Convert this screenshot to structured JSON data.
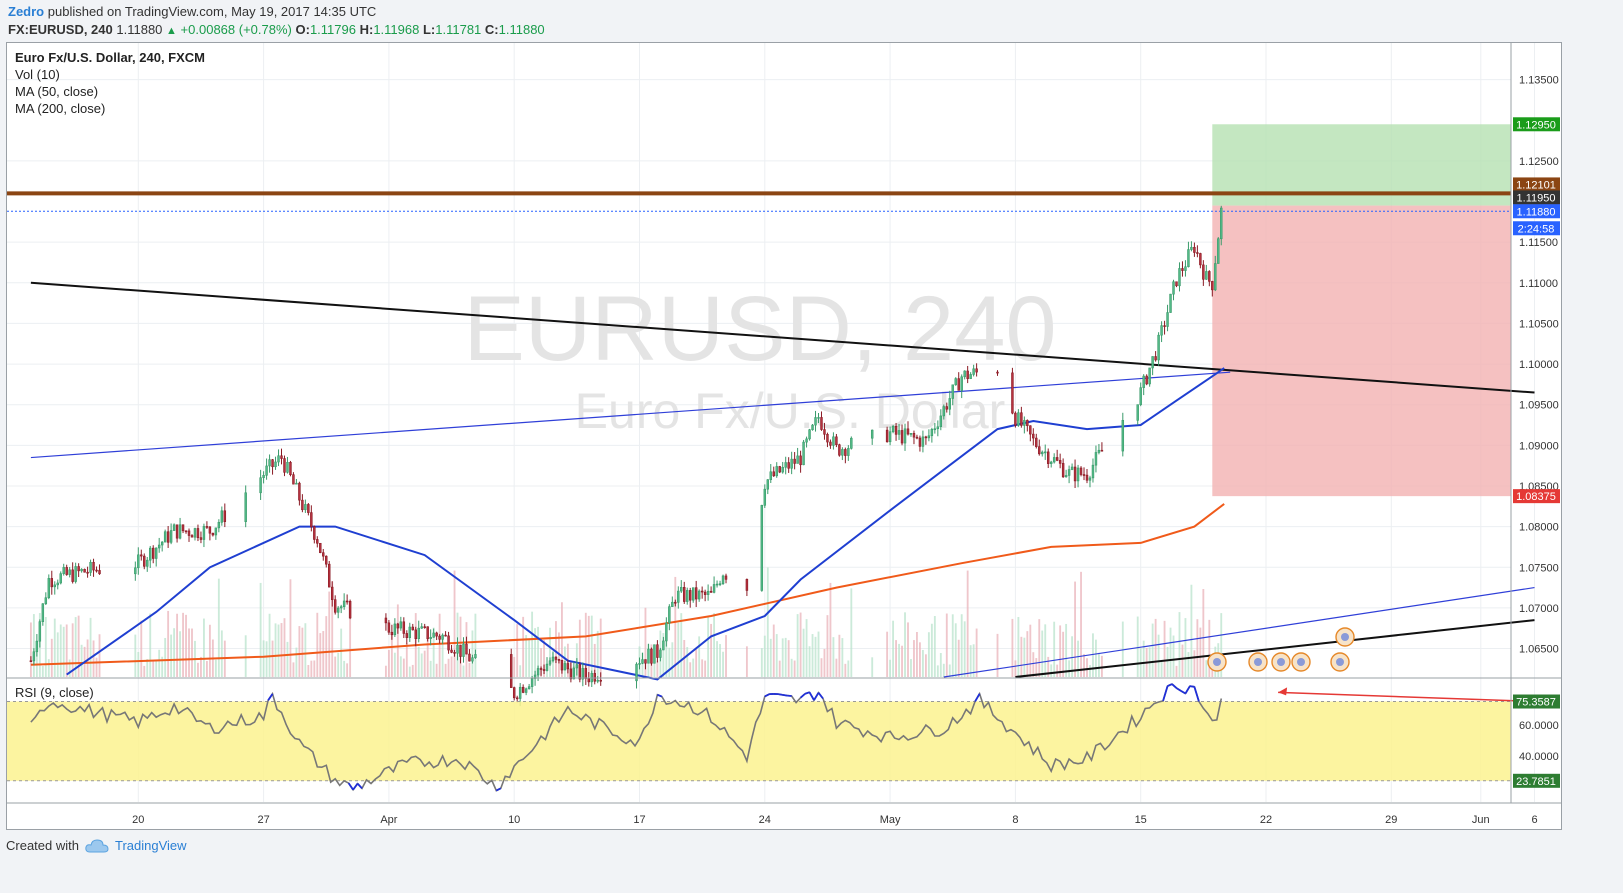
{
  "header": {
    "author": "Zedro",
    "published": "published on TradingView.com, May 19, 2017 14:35 UTC",
    "symbol": "FX:EURUSD, 240",
    "last": "1.11880",
    "change": "+0.00868 (+0.78%)",
    "open_label": "O:",
    "open": "1.11796",
    "high_label": "H:",
    "high": "1.11968",
    "low_label": "L:",
    "low": "1.11781",
    "close_label": "C:",
    "close": "1.11880"
  },
  "legend": {
    "title": "Euro Fx/U.S. Dollar, 240, FXCM",
    "vol": "Vol (10)",
    "ma50": "MA (50, close)",
    "ma200": "MA (200, close)",
    "rsi": "RSI (9, close)"
  },
  "watermark": {
    "symbol": "EURUSD, 240",
    "name": "Euro Fx/U.S. Dollar"
  },
  "footer": {
    "created_with": "Created with",
    "brand": "TradingView"
  },
  "colors": {
    "up": "#53b987",
    "down": "#eb4d5c",
    "ma50": "#1f3fd1",
    "ma200": "#f05a1a",
    "resistance": "#8b4513",
    "target_zone": "#b5e1b1",
    "stop_zone": "#f3b1b1",
    "rsi_band": "#fbf28f",
    "rsi_line": "#777777"
  },
  "chart_data": [
    {
      "type": "candlestick",
      "pane": "price",
      "ylim": [
        1.0615,
        1.1395
      ],
      "y_ticks": [
        "1.13500",
        "1.12500",
        "1.11500",
        "1.11000",
        "1.10500",
        "1.10000",
        "1.09500",
        "1.09000",
        "1.08500",
        "1.08000",
        "1.07500",
        "1.07000",
        "1.06500"
      ],
      "x_ticks": [
        "20",
        "27",
        "Apr",
        "10",
        "17",
        "24",
        "May",
        "8",
        "15",
        "22",
        "29",
        "Jun",
        "6"
      ],
      "price_tags": [
        {
          "label": "1.12950",
          "color": "#1a9c1a"
        },
        {
          "label": "1.12101",
          "color": "#8b4513"
        },
        {
          "label": "1.11950",
          "color": "#333333"
        },
        {
          "label": "1.11880",
          "color": "#2962ff"
        },
        {
          "label": "2:24:58",
          "color": "#2962ff"
        },
        {
          "label": "1.08375",
          "color": "#e53935"
        }
      ],
      "anchors": [
        {
          "x": "2017-03-14",
          "y": 1.0635
        },
        {
          "x": "2017-03-15",
          "y": 1.0735
        },
        {
          "x": "2017-03-17",
          "y": 1.0745
        },
        {
          "x": "2017-03-20",
          "y": 1.0755
        },
        {
          "x": "2017-03-22",
          "y": 1.0795
        },
        {
          "x": "2017-03-24",
          "y": 1.0795
        },
        {
          "x": "2017-03-27",
          "y": 1.0865
        },
        {
          "x": "2017-03-28",
          "y": 1.0885
        },
        {
          "x": "2017-03-30",
          "y": 1.0785
        },
        {
          "x": "2017-03-31",
          "y": 1.0705
        },
        {
          "x": "2017-04-03",
          "y": 1.0675
        },
        {
          "x": "2017-04-06",
          "y": 1.0665
        },
        {
          "x": "2017-04-10",
          "y": 1.0595
        },
        {
          "x": "2017-04-12",
          "y": 1.0635
        },
        {
          "x": "2017-04-14",
          "y": 1.0615
        },
        {
          "x": "2017-04-18",
          "y": 1.0645
        },
        {
          "x": "2017-04-19",
          "y": 1.0715
        },
        {
          "x": "2017-04-21",
          "y": 1.0715
        },
        {
          "x": "2017-04-21 16:00",
          "y": 1.0745
        },
        {
          "x": "2017-04-23",
          "y": 1.0725
        },
        {
          "x": "2017-04-24",
          "y": 1.0855
        },
        {
          "x": "2017-04-26",
          "y": 1.0885
        },
        {
          "x": "2017-04-27",
          "y": 1.0935
        },
        {
          "x": "2017-04-28",
          "y": 1.0895
        },
        {
          "x": "2017-05-01",
          "y": 1.0915
        },
        {
          "x": "2017-05-03",
          "y": 1.0905
        },
        {
          "x": "2017-05-05",
          "y": 1.0985
        },
        {
          "x": "2017-05-07",
          "y": 1.0995
        },
        {
          "x": "2017-05-08",
          "y": 1.0935
        },
        {
          "x": "2017-05-09",
          "y": 1.0905
        },
        {
          "x": "2017-05-11",
          "y": 1.0865
        },
        {
          "x": "2017-05-12",
          "y": 1.0865
        },
        {
          "x": "2017-05-15",
          "y": 1.0965
        },
        {
          "x": "2017-05-16",
          "y": 1.1025
        },
        {
          "x": "2017-05-17",
          "y": 1.1105
        },
        {
          "x": "2017-05-18",
          "y": 1.1145
        },
        {
          "x": "2017-05-18 16:00",
          "y": 1.1105
        },
        {
          "x": "2017-05-19",
          "y": 1.11
        },
        {
          "x": "2017-05-19 12:00",
          "y": 1.1188
        }
      ],
      "lines": [
        {
          "name": "resistance",
          "y": 1.121
        },
        {
          "name": "last price",
          "y": 1.1188
        }
      ],
      "positions": {
        "entry_start": "2017-05-19",
        "end": "2017-06-06",
        "target_top": 1.1295,
        "entry": 1.1195,
        "stop": 1.08375
      },
      "ma50": [
        {
          "x": "2017-03-16",
          "y": 1.0618
        },
        {
          "x": "2017-03-21",
          "y": 1.0695
        },
        {
          "x": "2017-03-24",
          "y": 1.075
        },
        {
          "x": "2017-03-29",
          "y": 1.08
        },
        {
          "x": "2017-03-31",
          "y": 1.08
        },
        {
          "x": "2017-04-05",
          "y": 1.0765
        },
        {
          "x": "2017-04-10",
          "y": 1.0685
        },
        {
          "x": "2017-04-13",
          "y": 1.0635
        },
        {
          "x": "2017-04-18",
          "y": 1.0612
        },
        {
          "x": "2017-04-21",
          "y": 1.0665
        },
        {
          "x": "2017-04-24",
          "y": 1.069
        },
        {
          "x": "2017-04-26",
          "y": 1.0735
        },
        {
          "x": "2017-05-01",
          "y": 1.082
        },
        {
          "x": "2017-05-04",
          "y": 1.087
        },
        {
          "x": "2017-05-07",
          "y": 1.092
        },
        {
          "x": "2017-05-09",
          "y": 1.093
        },
        {
          "x": "2017-05-12",
          "y": 1.092
        },
        {
          "x": "2017-05-15",
          "y": 1.0925
        },
        {
          "x": "2017-05-17",
          "y": 1.0955
        },
        {
          "x": "2017-05-19",
          "y": 1.0985
        },
        {
          "x": "2017-05-19 16:00",
          "y": 1.0995
        }
      ],
      "ma200": [
        {
          "x": "2017-03-14",
          "y": 1.063
        },
        {
          "x": "2017-03-27",
          "y": 1.064
        },
        {
          "x": "2017-04-05",
          "y": 1.0655
        },
        {
          "x": "2017-04-14",
          "y": 1.0665
        },
        {
          "x": "2017-04-21",
          "y": 1.069
        },
        {
          "x": "2017-04-28",
          "y": 1.0725
        },
        {
          "x": "2017-05-05",
          "y": 1.0755
        },
        {
          "x": "2017-05-10",
          "y": 1.0775
        },
        {
          "x": "2017-05-15",
          "y": 1.078
        },
        {
          "x": "2017-05-18",
          "y": 1.08
        },
        {
          "x": "2017-05-19 16:00",
          "y": 1.0828
        }
      ],
      "trendlines": [
        {
          "name": "descending resistance",
          "from": {
            "x": "2017-03-14",
            "y": 1.11
          },
          "to": {
            "x": "2017-06-06",
            "y": 1.0965
          }
        },
        {
          "name": "rising channel top",
          "from": {
            "x": "2017-03-14",
            "y": 1.0885
          },
          "to": {
            "x": "2017-05-20",
            "y": 1.099
          }
        },
        {
          "name": "rising channel bottom",
          "from": {
            "x": "2017-05-04",
            "y": 1.0615
          },
          "to": {
            "x": "2017-06-06",
            "y": 1.0725
          }
        },
        {
          "name": "support line",
          "from": {
            "x": "2017-05-08",
            "y": 1.0615
          },
          "to": {
            "x": "2017-06-06",
            "y": 1.0685
          }
        }
      ]
    },
    {
      "type": "line",
      "pane": "rsi",
      "name": "RSI (9, close)",
      "ylim": [
        10,
        90
      ],
      "y_ticks": [
        "60.0000",
        "40.0000"
      ],
      "levels": [
        {
          "label": "75.3587",
          "y": 75.36,
          "color": "#2e7d32"
        },
        {
          "label": "23.7851",
          "y": 23.79,
          "color": "#2e7d32"
        }
      ],
      "points": [
        {
          "x": "2017-03-14",
          "y": 58
        },
        {
          "x": "2017-03-15",
          "y": 76
        },
        {
          "x": "2017-03-17",
          "y": 70
        },
        {
          "x": "2017-03-20",
          "y": 62
        },
        {
          "x": "2017-03-22",
          "y": 72
        },
        {
          "x": "2017-03-24",
          "y": 58
        },
        {
          "x": "2017-03-27",
          "y": 66
        },
        {
          "x": "2017-03-27 12:00",
          "y": 79
        },
        {
          "x": "2017-03-29",
          "y": 48
        },
        {
          "x": "2017-03-31",
          "y": 24
        },
        {
          "x": "2017-04-01",
          "y": 19
        },
        {
          "x": "2017-04-04",
          "y": 35
        },
        {
          "x": "2017-04-07",
          "y": 38
        },
        {
          "x": "2017-04-09",
          "y": 20
        },
        {
          "x": "2017-04-11",
          "y": 45
        },
        {
          "x": "2017-04-13",
          "y": 70
        },
        {
          "x": "2017-04-14",
          "y": 64
        },
        {
          "x": "2017-04-17",
          "y": 48
        },
        {
          "x": "2017-04-18",
          "y": 80
        },
        {
          "x": "2017-04-20",
          "y": 72
        },
        {
          "x": "2017-04-21",
          "y": 65
        },
        {
          "x": "2017-04-23",
          "y": 40
        },
        {
          "x": "2017-04-24",
          "y": 78
        },
        {
          "x": "2017-04-26",
          "y": 76
        },
        {
          "x": "2017-04-27",
          "y": 82
        },
        {
          "x": "2017-04-28",
          "y": 62
        },
        {
          "x": "2017-05-01",
          "y": 52
        },
        {
          "x": "2017-05-04",
          "y": 58
        },
        {
          "x": "2017-05-06",
          "y": 76
        },
        {
          "x": "2017-05-08",
          "y": 55
        },
        {
          "x": "2017-05-10",
          "y": 34
        },
        {
          "x": "2017-05-12",
          "y": 38
        },
        {
          "x": "2017-05-15",
          "y": 66
        },
        {
          "x": "2017-05-16",
          "y": 78
        },
        {
          "x": "2017-05-17",
          "y": 86
        },
        {
          "x": "2017-05-18",
          "y": 84
        },
        {
          "x": "2017-05-18 12:00",
          "y": 72
        },
        {
          "x": "2017-05-19",
          "y": 60
        },
        {
          "x": "2017-05-19 12:00",
          "y": 75
        }
      ],
      "trendline": {
        "from": {
          "x": "2017-06-06",
          "y": 75.5
        },
        "to": {
          "x": "2017-05-21",
          "y": 80
        }
      }
    }
  ]
}
